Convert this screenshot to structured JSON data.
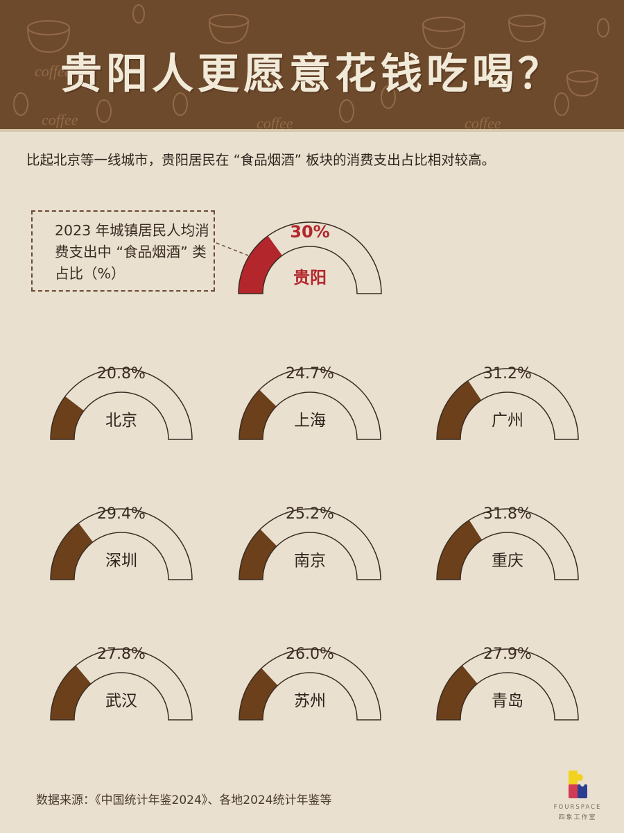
{
  "header": {
    "title": "贵阳人更愿意花钱吃喝？",
    "subtitle": "比起北京等一线城市，贵阳居民在 “食品烟酒” 板块的消费支出占比相对较高。"
  },
  "legend": {
    "text": "2023 年城镇居民人均消费支出中 “食品烟酒” 类占比（%）"
  },
  "hero": {
    "city": "贵阳",
    "value_label": "30%",
    "value": 30,
    "color": "#b3262b"
  },
  "cities": [
    {
      "city": "北京",
      "value_label": "20.8%",
      "value": 20.8
    },
    {
      "city": "上海",
      "value_label": "24.7%",
      "value": 24.7
    },
    {
      "city": "广州",
      "value_label": "31.2%",
      "value": 31.2
    },
    {
      "city": "深圳",
      "value_label": "29.4%",
      "value": 29.4
    },
    {
      "city": "南京",
      "value_label": "25.2%",
      "value": 25.2
    },
    {
      "city": "重庆",
      "value_label": "31.8%",
      "value": 31.8
    },
    {
      "city": "武汉",
      "value_label": "27.8%",
      "value": 27.8
    },
    {
      "city": "苏州",
      "value_label": "26.0%",
      "value": 26.0
    },
    {
      "city": "青岛",
      "value_label": "27.9%",
      "value": 27.9
    }
  ],
  "colors": {
    "fill": "#6b401b",
    "hero_fill": "#b3262b",
    "background": "#e9e0d0",
    "header_bg": "#6e4a2c",
    "outline": "#3a2c22"
  },
  "footer": {
    "source": "数据来源：《中国统计年鉴2024》、各地2024统计年鉴等",
    "logo_word": "FOURSPACE",
    "logo_cn": "四象工作室"
  },
  "chart_data": {
    "type": "gauge",
    "title": "贵阳人更愿意花钱吃喝？",
    "subtitle": "2023 年城镇居民人均消费支出中 “食品烟酒” 类占比（%）",
    "categories": [
      "贵阳",
      "北京",
      "上海",
      "广州",
      "深圳",
      "南京",
      "重庆",
      "武汉",
      "苏州",
      "青岛"
    ],
    "values": [
      30,
      20.8,
      24.7,
      31.2,
      29.4,
      25.2,
      31.8,
      27.8,
      26.0,
      27.9
    ],
    "unit": "%",
    "highlight": "贵阳",
    "ylim": [
      0,
      100
    ],
    "source": "《中国统计年鉴2024》、各地2024统计年鉴等"
  }
}
